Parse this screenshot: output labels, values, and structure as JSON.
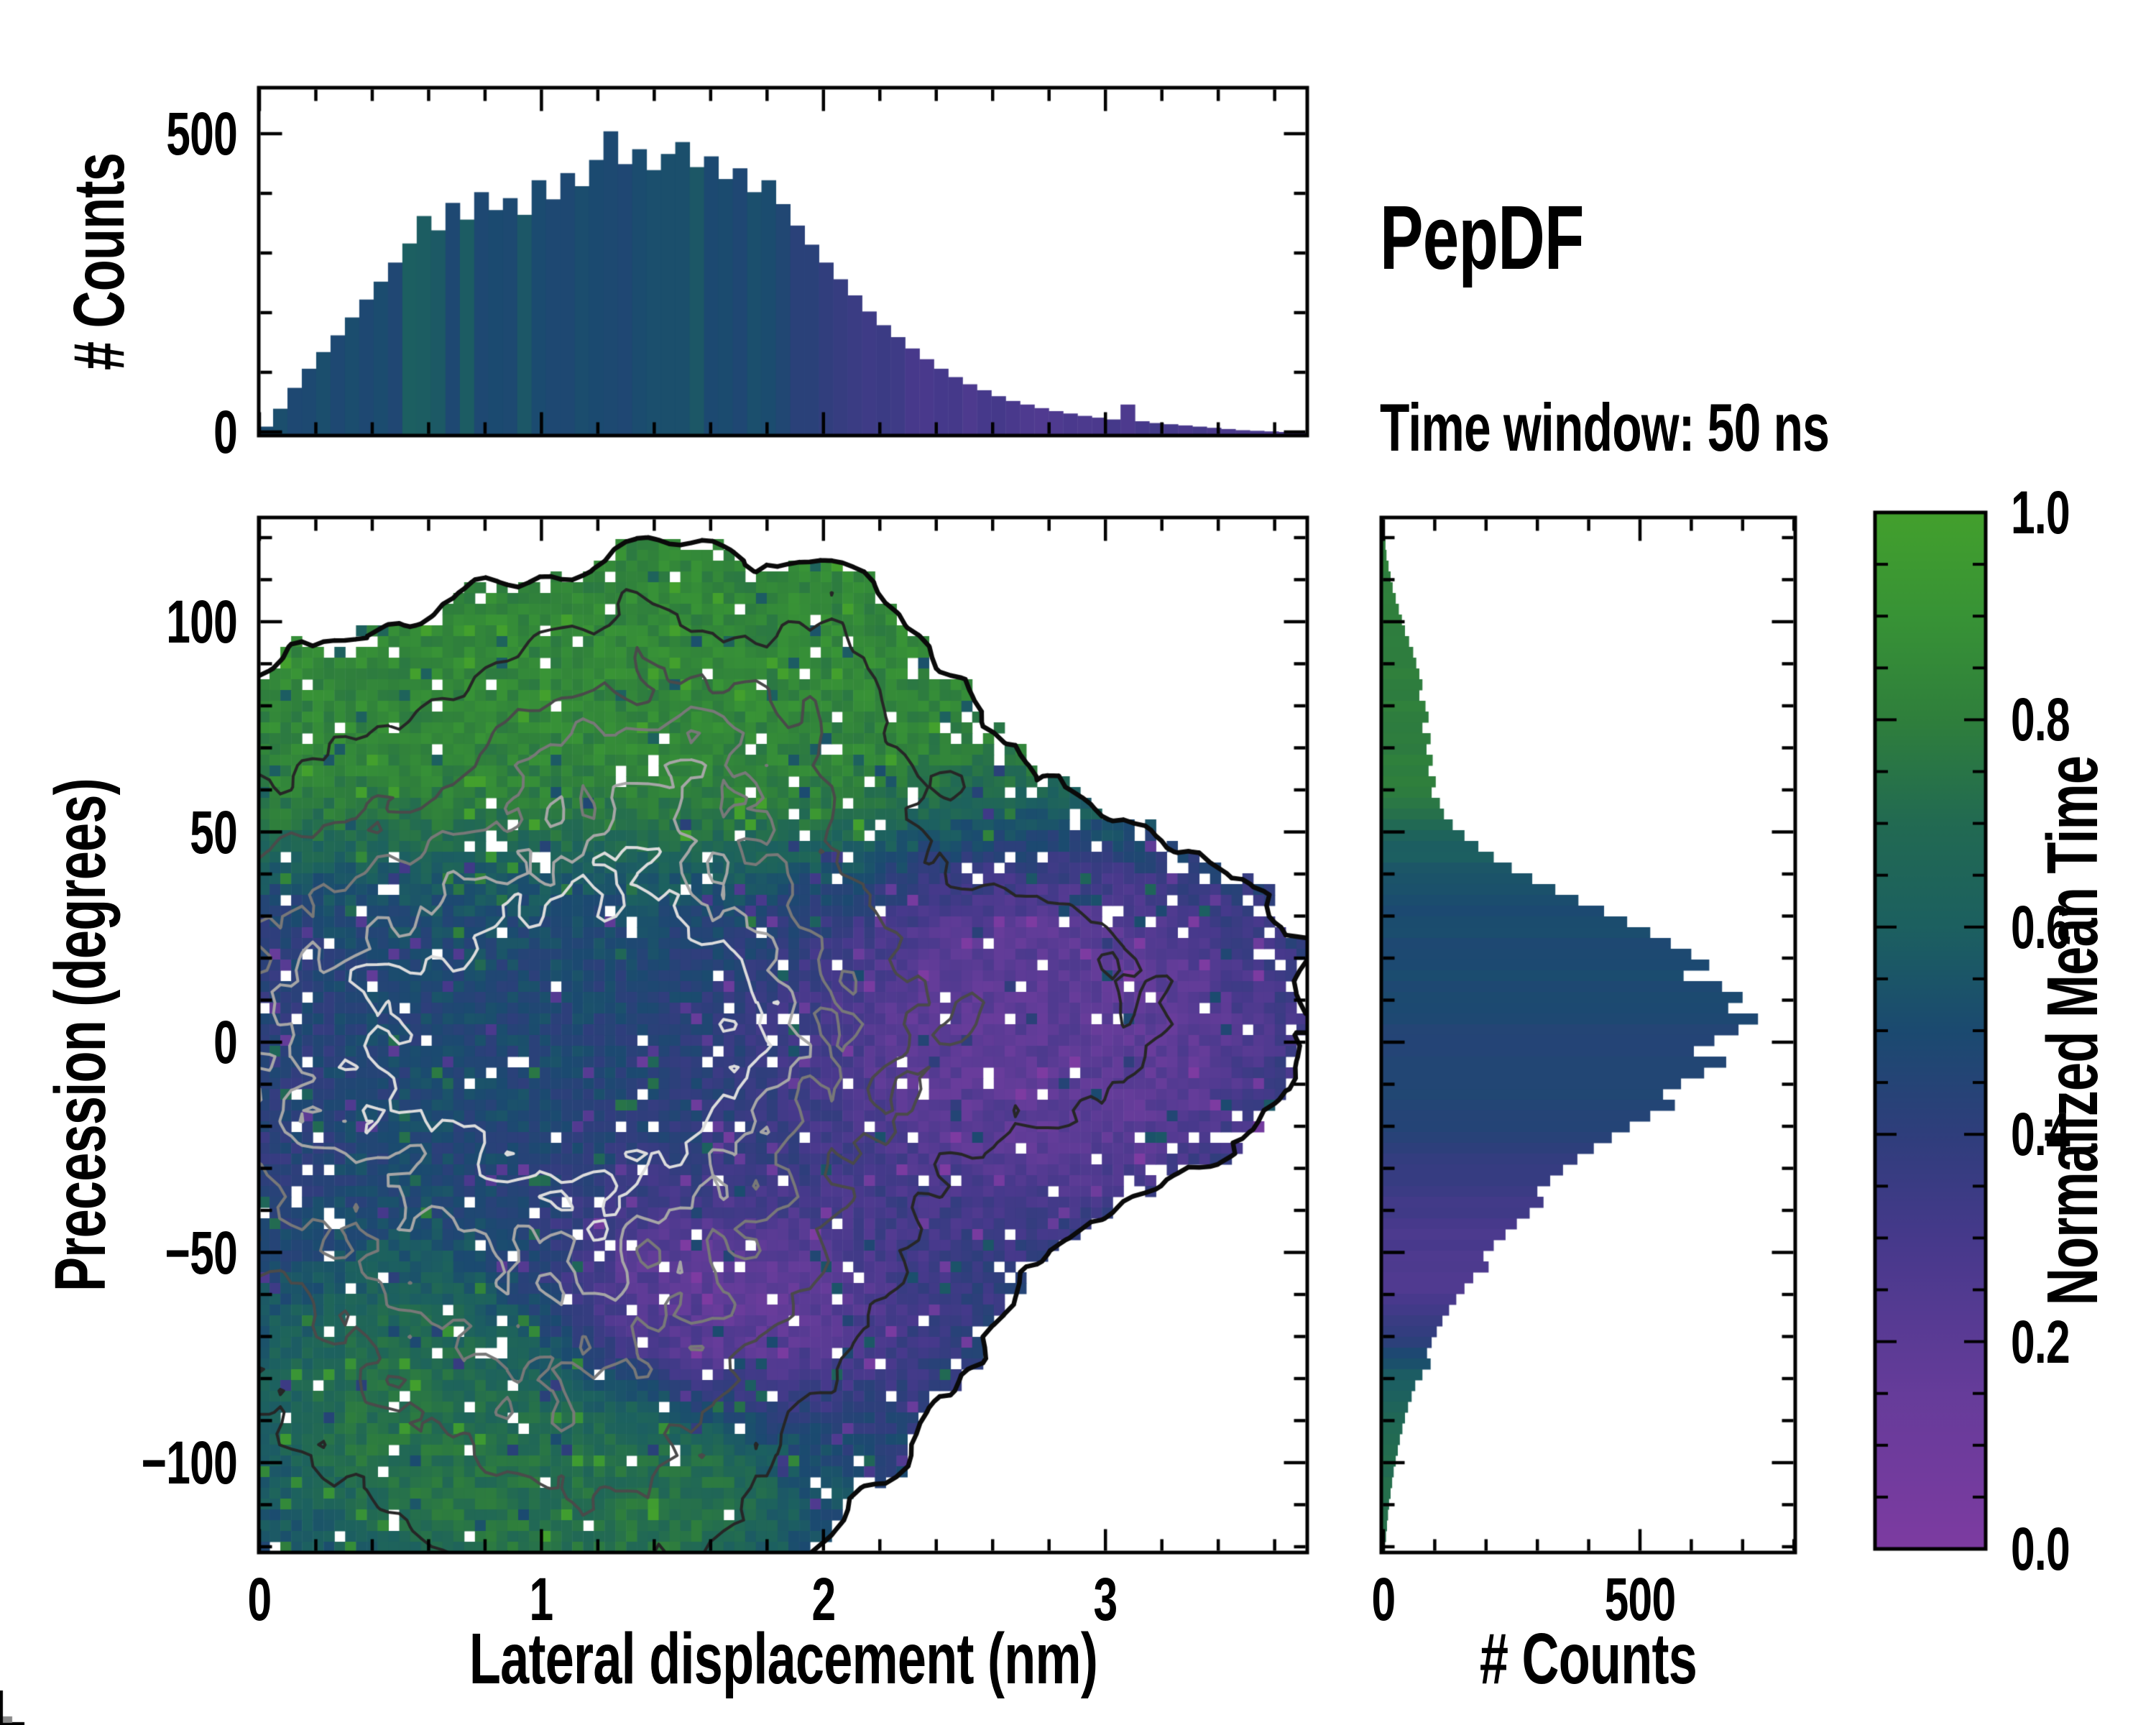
{
  "title": {
    "heading": "PepDF",
    "subtitle": "Time window: 50 ns"
  },
  "axes": {
    "top_hist": {
      "ylabel": "# Counts",
      "ytick_values": [
        0,
        500
      ],
      "ytick_labels": [
        "0",
        "500"
      ],
      "y_minor_step": 100,
      "ylim": [
        0,
        578
      ],
      "xlim": [
        0,
        3.715
      ]
    },
    "main": {
      "xlabel": "Lateral displacement (nm)",
      "ylabel": "Precession (degrees)",
      "xtick_values": [
        0,
        1,
        2,
        3
      ],
      "xtick_labels": [
        "0",
        "1",
        "2",
        "3"
      ],
      "x_minor_step": 0.2,
      "ytick_values": [
        100,
        50,
        0,
        -50,
        -100
      ],
      "ytick_labels": [
        "100",
        "50",
        "0",
        "−50",
        "−100"
      ],
      "y_minor_step": 10,
      "xlim": [
        0,
        3.715
      ],
      "ylim": [
        -121.4,
        124.8
      ]
    },
    "right_hist": {
      "xlabel": "# Counts",
      "xtick_values": [
        0,
        500
      ],
      "xtick_labels": [
        "0",
        "500"
      ],
      "x_minor_step": 100,
      "xlim": [
        0,
        802
      ]
    },
    "colorbar": {
      "label": "Normalized Mean Time",
      "tick_values": [
        0.0,
        0.2,
        0.4,
        0.6,
        0.8,
        1.0
      ],
      "tick_labels": [
        "0.0",
        "0.2",
        "0.4",
        "0.6",
        "0.8",
        "1.0"
      ],
      "minor_step": 0.05,
      "lim": [
        0,
        1
      ]
    }
  },
  "chart_data": [
    {
      "type": "bar",
      "name": "top_marginal_histogram",
      "orientation": "vertical",
      "xlabel": "Lateral displacement (nm)",
      "ylabel": "# Counts",
      "xlim": [
        0,
        3.715
      ],
      "ylim": [
        0,
        578
      ],
      "n_bins": 73,
      "values": [
        15,
        45,
        80,
        112,
        140,
        168,
        198,
        228,
        258,
        290,
        322,
        368,
        344,
        390,
        362,
        408,
        378,
        398,
        370,
        428,
        396,
        440,
        418,
        462,
        510,
        455,
        480,
        445,
        472,
        492,
        450,
        468,
        430,
        448,
        408,
        428,
        388,
        352,
        320,
        290,
        262,
        235,
        208,
        185,
        165,
        146,
        128,
        112,
        98,
        86,
        76,
        66,
        58,
        52,
        46,
        41,
        37,
        33,
        30,
        27,
        52,
        24,
        21,
        19,
        17,
        15,
        13,
        11,
        9,
        8,
        7,
        6,
        5
      ],
      "color_profile_breakpoints": [
        [
          0,
          0.5
        ],
        [
          1.8,
          0.5
        ],
        [
          2.0,
          0.4
        ],
        [
          2.3,
          0.3
        ],
        [
          2.8,
          0.27
        ],
        [
          3.2,
          0.3
        ],
        [
          3.72,
          0.28
        ]
      ],
      "color_jitter": 0.025,
      "teal_speckle_prob": 0.08
    },
    {
      "type": "heatmap",
      "name": "main_2d_histogram",
      "xlabel": "Lateral displacement (nm)",
      "ylabel": "Precession (degrees)",
      "color_label": "Normalized Mean Time",
      "xlim": [
        0,
        3.715
      ],
      "ylim": [
        -121.4,
        124.8
      ],
      "nx": 97,
      "ny": 96,
      "seed": 42,
      "fill_threshold": 0.048,
      "density_noise_mult": 0.38,
      "density_noise_add": 0.012,
      "hole_rules": {
        "low_density": 0.09,
        "p_low": 0.22,
        "p_base": 0.035
      },
      "density_lobes": [
        {
          "amp": 1.0,
          "x": 1.05,
          "y": 2,
          "sx": 0.68,
          "sy": 34
        },
        {
          "amp": 0.3,
          "x": 1.4,
          "y": 10,
          "sx": 0.33,
          "sy": 20
        },
        {
          "amp": 0.42,
          "x": 1.45,
          "y": 68,
          "sx": 0.52,
          "sy": 21
        },
        {
          "amp": 0.1,
          "x": 1.35,
          "y": 102,
          "sx": 0.1,
          "sy": 10
        },
        {
          "amp": 0.1,
          "x": 2.0,
          "y": 92,
          "sx": 0.12,
          "sy": 14
        },
        {
          "amp": 0.22,
          "x": 2.75,
          "y": 8,
          "sx": 0.55,
          "sy": 26
        },
        {
          "amp": 0.3,
          "x": 1.5,
          "y": -60,
          "sx": 0.55,
          "sy": 24
        },
        {
          "amp": 0.28,
          "x": 0.75,
          "y": -82,
          "sx": 0.5,
          "sy": 30
        },
        {
          "amp": 0.18,
          "x": 1.35,
          "y": -108,
          "sx": 0.35,
          "sy": 16
        },
        {
          "amp": 0.3,
          "x": 0.12,
          "y": -5,
          "sx": 0.28,
          "sy": 45
        }
      ],
      "islands": [
        {
          "x": 0.8,
          "y": 104
        },
        {
          "x": 1.05,
          "y": 96
        },
        {
          "x": 1.6,
          "y": 114
        },
        {
          "x": 2.05,
          "y": 106
        },
        {
          "x": 3.45,
          "y": 22
        },
        {
          "x": 3.5,
          "y": -8
        },
        {
          "x": 1.95,
          "y": -112
        },
        {
          "x": 2.2,
          "y": -98
        },
        {
          "x": 0.1,
          "y": -112
        },
        {
          "x": 2.45,
          "y": 60
        }
      ],
      "island_amp": 0.09,
      "island_sx": 0.05,
      "island_sy": 3,
      "time_field": {
        "base": 0.48,
        "top_green": {
          "y_threshold_near": 45,
          "y_threshold_far": 58,
          "x_break": 2.25,
          "softness": 7,
          "t": 0.84
        },
        "right_purple": {
          "x": 2.8,
          "y": 2,
          "sx": 0.6,
          "sy": 30,
          "gain": 1.5,
          "t": 0.2
        },
        "bottom_mid_purple": {
          "x": 1.55,
          "y": -62,
          "sx": 0.55,
          "sy": 20,
          "gain": 1.2,
          "t": 0.16
        },
        "bottom_left_green": {
          "x": 0.7,
          "y": -85,
          "sx": 0.5,
          "sy": 26,
          "gain": 1.3,
          "t": 0.74
        },
        "bottom_deep_green": {
          "x": 1.3,
          "y": -108,
          "sx": 0.4,
          "sy": 14,
          "gain": 1.3,
          "t": 0.74
        },
        "left_edge_violet": {
          "x_sigma": 0.22,
          "y_low": -55,
          "y_high": 45,
          "gain": 0.5,
          "t": 0.34
        },
        "noise": 0.07,
        "speckle_prob": 0.06,
        "speckle_amp": 0.25
      },
      "contour_levels": [
        {
          "level": 0.048,
          "color": "#0a0a0a",
          "width": 6.5
        },
        {
          "level": 0.17,
          "color": "#262626",
          "width": 4
        },
        {
          "level": 0.32,
          "color": "#4a4a4a",
          "width": 4
        },
        {
          "level": 0.47,
          "color": "#787878",
          "width": 4
        },
        {
          "level": 0.63,
          "color": "#a6a6a6",
          "width": 4
        },
        {
          "level": 0.79,
          "color": "#dcdcdc",
          "width": 4
        }
      ]
    },
    {
      "type": "bar",
      "name": "right_marginal_histogram",
      "orientation": "horizontal",
      "xlabel": "# Counts",
      "ylabel": "Precession (degrees)",
      "xlim": [
        0,
        802
      ],
      "ylim": [
        -121.4,
        124.8
      ],
      "n_bins": 96,
      "values_top_to_bottom": [
        0,
        0,
        4,
        6,
        10,
        14,
        18,
        24,
        30,
        36,
        42,
        50,
        58,
        64,
        70,
        76,
        70,
        82,
        88,
        76,
        92,
        84,
        96,
        88,
        102,
        94,
        110,
        118,
        135,
        158,
        185,
        215,
        250,
        290,
        335,
        380,
        430,
        475,
        520,
        560,
        600,
        635,
        585,
        660,
        700,
        672,
        730,
        692,
        645,
        605,
        668,
        625,
        580,
        545,
        568,
        520,
        480,
        445,
        410,
        378,
        350,
        325,
        300,
        312,
        285,
        260,
        238,
        215,
        195,
        205,
        175,
        158,
        142,
        128,
        115,
        104,
        94,
        85,
        92,
        76,
        62,
        55,
        48,
        42,
        37,
        32,
        28,
        24,
        20,
        17,
        14,
        11,
        9,
        7,
        5,
        3
      ],
      "color_profile_breakpoints": [
        [
          -121.4,
          0.74
        ],
        [
          -105,
          0.72
        ],
        [
          -90,
          0.68
        ],
        [
          -78,
          0.58
        ],
        [
          -70,
          0.38
        ],
        [
          -60,
          0.27
        ],
        [
          -45,
          0.28
        ],
        [
          -32,
          0.36
        ],
        [
          -20,
          0.44
        ],
        [
          0,
          0.47
        ],
        [
          25,
          0.5
        ],
        [
          38,
          0.52
        ],
        [
          48,
          0.62
        ],
        [
          60,
          0.8
        ],
        [
          124.8,
          0.8
        ]
      ],
      "color_jitter": 0.02
    },
    {
      "type": "colorbar",
      "name": "normalized_mean_time_colorbar",
      "label": "Normalized Mean Time",
      "lim": [
        0,
        1
      ],
      "colormap_stops": [
        {
          "v": 0.0,
          "hex": "#7d3ba1"
        },
        {
          "v": 0.15,
          "hex": "#663c9a"
        },
        {
          "v": 0.3,
          "hex": "#46398b"
        },
        {
          "v": 0.4,
          "hex": "#2f3e7c"
        },
        {
          "v": 0.5,
          "hex": "#1b4a70"
        },
        {
          "v": 0.6,
          "hex": "#1c6060"
        },
        {
          "v": 0.7,
          "hex": "#226a52"
        },
        {
          "v": 0.8,
          "hex": "#2f7f3c"
        },
        {
          "v": 0.9,
          "hex": "#389336"
        },
        {
          "v": 1.0,
          "hex": "#43a02d"
        }
      ]
    }
  ]
}
